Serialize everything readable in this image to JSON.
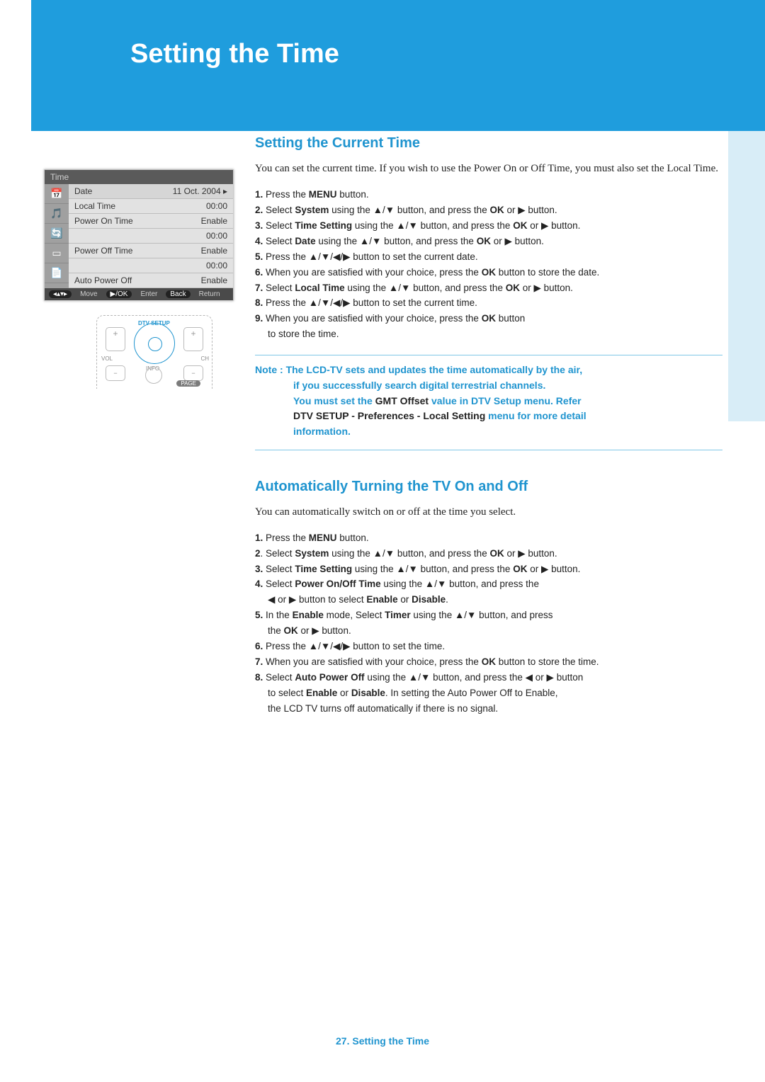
{
  "colors": {
    "accent": "#1f9ddd",
    "accent_text": "#1f94cf",
    "pale_side": "#d8edf7",
    "body_text": "#222222",
    "note_border": "#7fc6e6"
  },
  "header": {
    "title": "Setting the Time"
  },
  "menu_shot": {
    "title": "Time",
    "icons": [
      "📅",
      "🎵",
      "🔄",
      "▭",
      "📄"
    ],
    "items": [
      {
        "label": "Date",
        "value": "11 Oct. 2004",
        "arrow": "▸"
      },
      {
        "label": "Local Time",
        "value": "00:00"
      },
      {
        "label": "Power On Time",
        "value": "Enable"
      },
      {
        "label": "",
        "value": "00:00"
      },
      {
        "label": "Power Off Time",
        "value": "Enable"
      },
      {
        "label": "",
        "value": "00:00"
      },
      {
        "label": "Auto Power Off",
        "value": "Enable"
      }
    ],
    "footer": {
      "move_icon": "◂▴▾▸",
      "move_label": "Move",
      "enter_pill": "▶/OK",
      "enter_label": "Enter",
      "back_pill": "Back",
      "back_label": "Return"
    }
  },
  "remote": {
    "dtv_label": "DTV SETUP",
    "info_label": "INFO",
    "vol_label": "VOL",
    "ch_label": "CH",
    "page_label": "PAGE",
    "plus": "+",
    "minus": "−"
  },
  "section1": {
    "title": "Setting the Current Time",
    "intro": "You can set the current time. If you wish to use the Power On or Off Time, you must also set the Local Time.",
    "steps": {
      "s1": "Press the MENU button.",
      "s2a": "Select ",
      "s2b": "System",
      "s2c": " using the ▲/▼ button, and press the ",
      "s2d": "OK",
      "s2e": " or ▶ button.",
      "s3a": "Select ",
      "s3b": "Time Setting",
      "s3c": " using the ▲/▼ button, and press the ",
      "s3d": "OK",
      "s3e": " or ▶ button.",
      "s4a": "Select ",
      "s4b": "Date",
      "s4c": " using the ▲/▼ button, and press the ",
      "s4d": "OK",
      "s4e": " or ▶ button.",
      "s5": "Press the ▲/▼/◀/▶ button to set the current date.",
      "s6a": "When you are satisfied with your choice, press the ",
      "s6b": "OK",
      "s6c": " button to store the date.",
      "s7a": "Select ",
      "s7b": "Local Time",
      "s7c": " using the ▲/▼ button, and press the ",
      "s7d": "OK",
      "s7e": " or ▶ button.",
      "s8": "Press the ▲/▼/◀/▶ button to set the current time.",
      "s9a": "When you are satisfied with your choice, press the ",
      "s9b": "OK",
      "s9c": "  button",
      "s9d": "to store the time."
    },
    "note": {
      "prefix": "Note : ",
      "l1": "The LCD-TV sets and updates the time automatically by the air,",
      "l2": "if you successfully search digital terrestrial channels.",
      "l3a": "You must set the ",
      "l3b": "GMT Offset",
      "l3c": " value in DTV Setup menu. Refer",
      "l4a": "DTV SETUP - Preferences - Local Setting",
      "l4b": " menu for more detail",
      "l5": "information."
    }
  },
  "section2": {
    "title": "Automatically Turning the TV On and Off",
    "intro": "You can automatically switch on or off at the time you select.",
    "steps": {
      "s1": "Press the MENU button.",
      "s2a": "Select ",
      "s2b": "System",
      "s2c": " using the ▲/▼ button, and press the ",
      "s2d": "OK",
      "s2e": " or ▶ button.",
      "s3a": "Select ",
      "s3b": "Time Setting",
      "s3c": " using the ▲/▼ button, and press the ",
      "s3d": "OK",
      "s3e": " or ▶ button.",
      "s4a": "Select ",
      "s4b": "Power On/Off Time",
      "s4c": " using the ▲/▼ button, and press the",
      "s4d": "◀ or ▶ button to select ",
      "s4e": "Enable",
      "s4f": " or ",
      "s4g": "Disable",
      "s4h": ".",
      "s5a": "In the ",
      "s5b": "Enable",
      "s5c": " mode, Select ",
      "s5d": "Timer",
      "s5e": " using the ▲/▼ button, and press",
      "s5f": "the ",
      "s5g": "OK",
      "s5h": " or ▶ button.",
      "s6": "Press the ▲/▼/◀/▶ button to set the time.",
      "s7a": "When you are satisfied with your choice, press the ",
      "s7b": "OK",
      "s7c": " button to store the time.",
      "s8a": "Select ",
      "s8b": "Auto Power Off",
      "s8c": " using the ▲/▼ button, and press the ◀ or ▶ button",
      "s8d": "to select ",
      "s8e": "Enable",
      "s8f": " or ",
      "s8g": "Disable",
      "s8h": ". In setting the Auto Power Off to Enable,",
      "s8i": "the LCD TV turns off automatically if there is no signal."
    }
  },
  "footer": {
    "text": "27. Setting the Time"
  }
}
